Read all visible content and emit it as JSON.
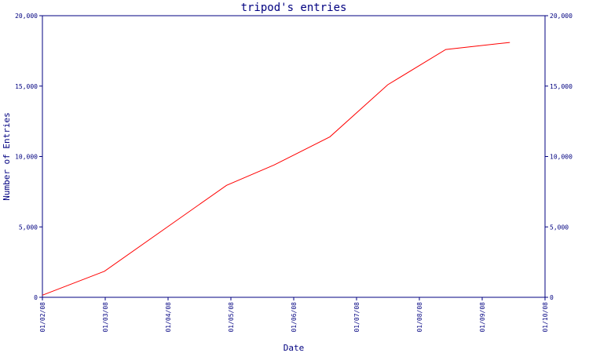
{
  "chart_data": {
    "type": "line",
    "title": "tripod's entries",
    "xlabel": "Date",
    "ylabel": "Number of Entries",
    "x_ticks": [
      "01/02/08",
      "01/03/08",
      "01/04/08",
      "01/05/08",
      "01/06/08",
      "01/07/08",
      "01/08/08",
      "01/09/08",
      "01/10/08"
    ],
    "y_ticks": [
      "0",
      "5,000",
      "10,000",
      "15,000",
      "20,000"
    ],
    "ylim": [
      0,
      20000
    ],
    "xlim": [
      "2008-02-01",
      "2008-10-01"
    ],
    "grid": false,
    "series": [
      {
        "color": "#ff0000",
        "points": [
          {
            "x": "2008-02-01",
            "y": 150
          },
          {
            "x": "2008-03-02",
            "y": 1850
          },
          {
            "x": "2008-04-01",
            "y": 4950
          },
          {
            "x": "2008-04-30",
            "y": 7950
          },
          {
            "x": "2008-05-23",
            "y": 9400
          },
          {
            "x": "2008-06-19",
            "y": 11400
          },
          {
            "x": "2008-07-17",
            "y": 15100
          },
          {
            "x": "2008-08-14",
            "y": 17600
          },
          {
            "x": "2008-09-14",
            "y": 18100
          }
        ]
      }
    ]
  }
}
